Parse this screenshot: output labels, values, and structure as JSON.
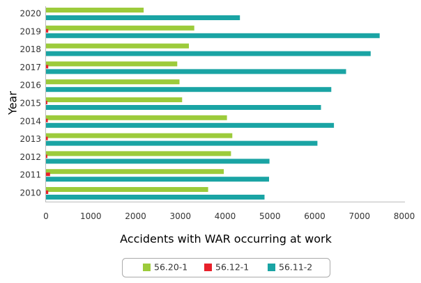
{
  "chart_data": {
    "type": "bar",
    "orientation": "horizontal",
    "title": "",
    "xlabel": "Accidents with WAR occurring at work",
    "ylabel": "Year",
    "xlim": [
      0,
      8000
    ],
    "x_ticks": [
      0,
      1000,
      2000,
      3000,
      4000,
      5000,
      6000,
      7000,
      8000
    ],
    "categories": [
      "2020",
      "2019",
      "2018",
      "2017",
      "2016",
      "2015",
      "2014",
      "2013",
      "2012",
      "2011",
      "2010"
    ],
    "series": [
      {
        "name": "56.20-1",
        "color": "#9ccb3b",
        "values": [
          2180,
          3310,
          3190,
          2930,
          2980,
          3040,
          4040,
          4160,
          4130,
          3970,
          3620
        ]
      },
      {
        "name": "56.12-1",
        "color": "#e8202a",
        "values": [
          0,
          50,
          0,
          50,
          0,
          30,
          40,
          40,
          30,
          90,
          50
        ]
      },
      {
        "name": "56.11-2",
        "color": "#1aa4a4",
        "values": [
          4330,
          7450,
          7250,
          6700,
          6370,
          6140,
          6430,
          6060,
          4990,
          4980,
          4880
        ]
      }
    ],
    "grid": false,
    "legend_position": "bottom"
  }
}
